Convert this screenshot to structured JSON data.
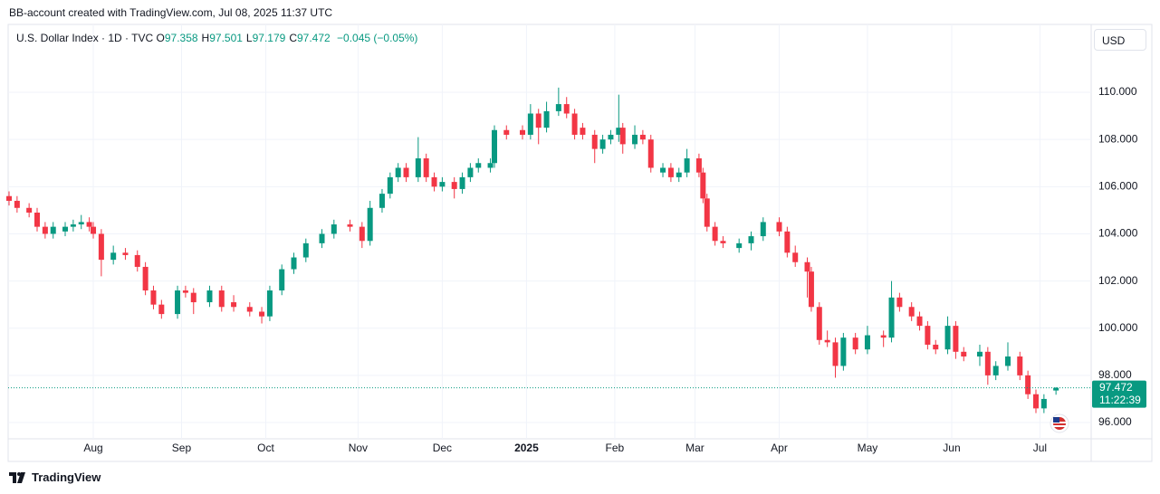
{
  "header": {
    "caption": "BB-account created with TradingView.com, Jul 08, 2025 11:37 UTC",
    "brand": "TradingView"
  },
  "legend": {
    "symbol": "U.S. Dollar Index · 1D · TVC",
    "fields": [
      {
        "label": "O",
        "value": 97.358
      },
      {
        "label": "H",
        "value": 97.501
      },
      {
        "label": "L",
        "value": 97.179
      },
      {
        "label": "C",
        "value": 97.472
      }
    ],
    "change": "−0.045 (−0.05%)",
    "currency": "USD"
  },
  "chart_data": {
    "type": "candlestick",
    "up_color": "#089981",
    "down_color": "#f23645",
    "x": [
      0,
      2,
      5,
      7,
      9,
      11,
      14,
      16,
      18,
      20,
      21,
      23,
      26,
      29,
      32,
      34,
      36,
      38,
      42,
      44,
      46,
      50,
      53,
      56,
      60,
      63,
      65,
      68,
      71,
      74,
      78,
      81,
      85,
      88,
      90,
      93,
      95,
      97,
      99,
      102,
      104,
      106,
      108,
      111,
      113,
      115,
      117,
      120,
      121,
      124,
      128,
      130,
      132,
      134,
      137,
      139,
      141,
      143,
      146,
      148,
      150,
      152,
      153,
      156,
      158,
      160,
      163,
      165,
      167,
      169,
      172,
      173,
      174,
      176,
      178,
      182,
      185,
      188,
      192,
      194,
      196,
      199,
      200,
      202,
      204,
      206,
      208,
      211,
      214,
      218,
      220,
      222,
      225,
      227,
      229,
      231,
      234,
      236,
      238,
      242,
      244,
      246,
      249,
      252,
      254,
      256,
      258,
      261
    ],
    "open": [
      105.6,
      105.4,
      105.1,
      104.9,
      104.3,
      104.0,
      104.1,
      104.3,
      104.4,
      104.5,
      104.3,
      104.0,
      102.9,
      103.2,
      103.1,
      102.6,
      101.6,
      101.0,
      100.6,
      101.6,
      101.5,
      101.1,
      101.6,
      101.1,
      100.9,
      100.7,
      100.5,
      101.6,
      102.5,
      103.0,
      103.6,
      104.0,
      104.4,
      104.3,
      103.7,
      105.1,
      105.7,
      106.4,
      106.8,
      106.4,
      107.2,
      106.4,
      106.0,
      106.2,
      105.9,
      106.4,
      106.8,
      106.8,
      107.0,
      108.4,
      108.4,
      108.2,
      109.1,
      108.5,
      109.2,
      109.5,
      109.1,
      108.5,
      108.2,
      107.6,
      108.0,
      108.2,
      108.5,
      107.8,
      108.2,
      108.0,
      106.6,
      106.8,
      106.4,
      106.6,
      107.2,
      106.6,
      105.5,
      104.3,
      103.7,
      103.4,
      103.6,
      103.9,
      104.5,
      104.1,
      103.2,
      102.8,
      102.4,
      100.9,
      99.5,
      99.4,
      98.4,
      99.6,
      99.1,
      99.7,
      99.6,
      101.3,
      100.9,
      100.5,
      100.1,
      99.3,
      99.1,
      100.1,
      99.0,
      98.8,
      99.0,
      98.0,
      98.4,
      98.8,
      98.0,
      97.2,
      96.6,
      97.358
    ],
    "high": [
      105.8,
      105.6,
      105.3,
      105.1,
      104.5,
      104.5,
      104.5,
      104.6,
      104.8,
      104.7,
      104.5,
      104.2,
      103.5,
      103.4,
      103.3,
      102.8,
      101.8,
      101.2,
      101.8,
      101.8,
      101.7,
      101.8,
      101.8,
      101.4,
      101.1,
      100.9,
      101.8,
      102.7,
      103.2,
      103.8,
      104.2,
      104.6,
      104.6,
      104.5,
      105.4,
      105.9,
      106.6,
      107.0,
      107.0,
      108.1,
      107.4,
      106.6,
      106.4,
      106.4,
      106.6,
      107.0,
      107.2,
      107.2,
      108.6,
      108.6,
      108.6,
      109.5,
      109.3,
      109.6,
      110.2,
      109.8,
      109.3,
      108.7,
      108.4,
      108.2,
      108.4,
      109.9,
      108.7,
      108.6,
      108.4,
      108.2,
      107.0,
      107.0,
      106.8,
      107.6,
      107.4,
      106.8,
      105.7,
      104.5,
      103.9,
      103.8,
      104.1,
      104.7,
      104.7,
      104.3,
      103.5,
      103.0,
      102.6,
      101.1,
      99.9,
      99.6,
      99.8,
      99.8,
      100.1,
      99.9,
      102.0,
      101.5,
      101.1,
      100.7,
      100.3,
      99.5,
      100.5,
      100.3,
      99.2,
      99.3,
      99.2,
      98.6,
      99.4,
      99.0,
      98.2,
      97.4,
      97.2,
      97.501
    ],
    "low": [
      105.2,
      104.9,
      104.7,
      104.1,
      103.8,
      103.8,
      103.9,
      104.1,
      104.2,
      104.1,
      103.8,
      102.2,
      102.7,
      102.9,
      102.4,
      101.4,
      100.8,
      100.4,
      100.4,
      101.3,
      100.6,
      100.9,
      100.7,
      100.7,
      100.5,
      100.2,
      100.3,
      101.4,
      102.3,
      102.8,
      103.4,
      103.8,
      104.1,
      103.4,
      103.5,
      104.9,
      105.5,
      106.2,
      106.2,
      106.2,
      106.2,
      105.8,
      105.8,
      105.5,
      105.7,
      106.2,
      106.6,
      106.6,
      106.8,
      108.0,
      108.0,
      108.0,
      107.8,
      108.3,
      109.0,
      108.9,
      108.0,
      108.0,
      107.0,
      107.4,
      107.8,
      107.9,
      107.4,
      107.6,
      107.8,
      106.6,
      106.4,
      106.2,
      106.2,
      106.4,
      106.4,
      105.3,
      104.1,
      103.5,
      103.4,
      103.2,
      103.3,
      103.7,
      103.9,
      103.0,
      102.6,
      101.3,
      100.7,
      99.3,
      99.2,
      97.9,
      98.2,
      98.9,
      98.9,
      99.2,
      99.4,
      100.7,
      100.3,
      99.9,
      99.1,
      98.9,
      98.9,
      98.7,
      98.6,
      98.4,
      97.6,
      97.8,
      98.2,
      97.8,
      97.0,
      96.4,
      96.4,
      97.179
    ],
    "close": [
      105.4,
      105.1,
      104.9,
      104.3,
      104.0,
      104.3,
      104.3,
      104.4,
      104.5,
      104.3,
      104.0,
      102.9,
      103.2,
      103.1,
      102.6,
      101.6,
      101.0,
      100.6,
      101.6,
      101.5,
      101.1,
      101.6,
      100.9,
      100.9,
      100.7,
      100.5,
      101.6,
      102.5,
      103.0,
      103.6,
      104.0,
      104.4,
      104.3,
      103.7,
      105.1,
      105.7,
      106.4,
      106.8,
      106.4,
      107.2,
      106.4,
      106.0,
      106.2,
      105.9,
      106.4,
      106.8,
      107.0,
      107.0,
      108.4,
      108.2,
      108.2,
      109.1,
      108.5,
      109.2,
      109.5,
      109.1,
      108.2,
      108.2,
      107.6,
      108.0,
      108.2,
      108.5,
      107.8,
      108.2,
      108.0,
      106.8,
      106.8,
      106.4,
      106.6,
      107.2,
      106.6,
      105.5,
      104.3,
      103.7,
      103.6,
      103.6,
      103.9,
      104.5,
      104.1,
      103.2,
      102.8,
      102.4,
      100.9,
      99.5,
      99.4,
      98.4,
      99.6,
      99.1,
      99.7,
      99.6,
      101.3,
      100.9,
      100.5,
      100.1,
      99.3,
      99.1,
      100.1,
      99.0,
      98.8,
      99.0,
      98.0,
      98.4,
      98.8,
      98.0,
      97.2,
      96.6,
      97.0,
      97.472
    ],
    "xlim": [
      0,
      263
    ],
    "xticks": [
      {
        "value": 21,
        "label": "Aug"
      },
      {
        "value": 43,
        "label": "Sep"
      },
      {
        "value": 64,
        "label": "Oct"
      },
      {
        "value": 87,
        "label": "Nov"
      },
      {
        "value": 108,
        "label": "Dec"
      },
      {
        "value": 129,
        "label": "2025"
      },
      {
        "value": 151,
        "label": "Feb"
      },
      {
        "value": 171,
        "label": "Mar"
      },
      {
        "value": 192,
        "label": "Apr"
      },
      {
        "value": 214,
        "label": "May"
      },
      {
        "value": 235,
        "label": "Jun"
      },
      {
        "value": 257,
        "label": "Jul"
      }
    ],
    "ylim": [
      95.31,
      112.84
    ],
    "yticks": [
      {
        "value": 96,
        "label": "96.000"
      },
      {
        "value": 98,
        "label": "98.000"
      },
      {
        "value": 100,
        "label": "100.000"
      },
      {
        "value": 102,
        "label": "102.000"
      },
      {
        "value": 104,
        "label": "104.000"
      },
      {
        "value": 106,
        "label": "106.000"
      },
      {
        "value": 108,
        "label": "108.000"
      },
      {
        "value": 110,
        "label": "110.000"
      }
    ],
    "grid": true,
    "countdown": "11:22:39"
  }
}
